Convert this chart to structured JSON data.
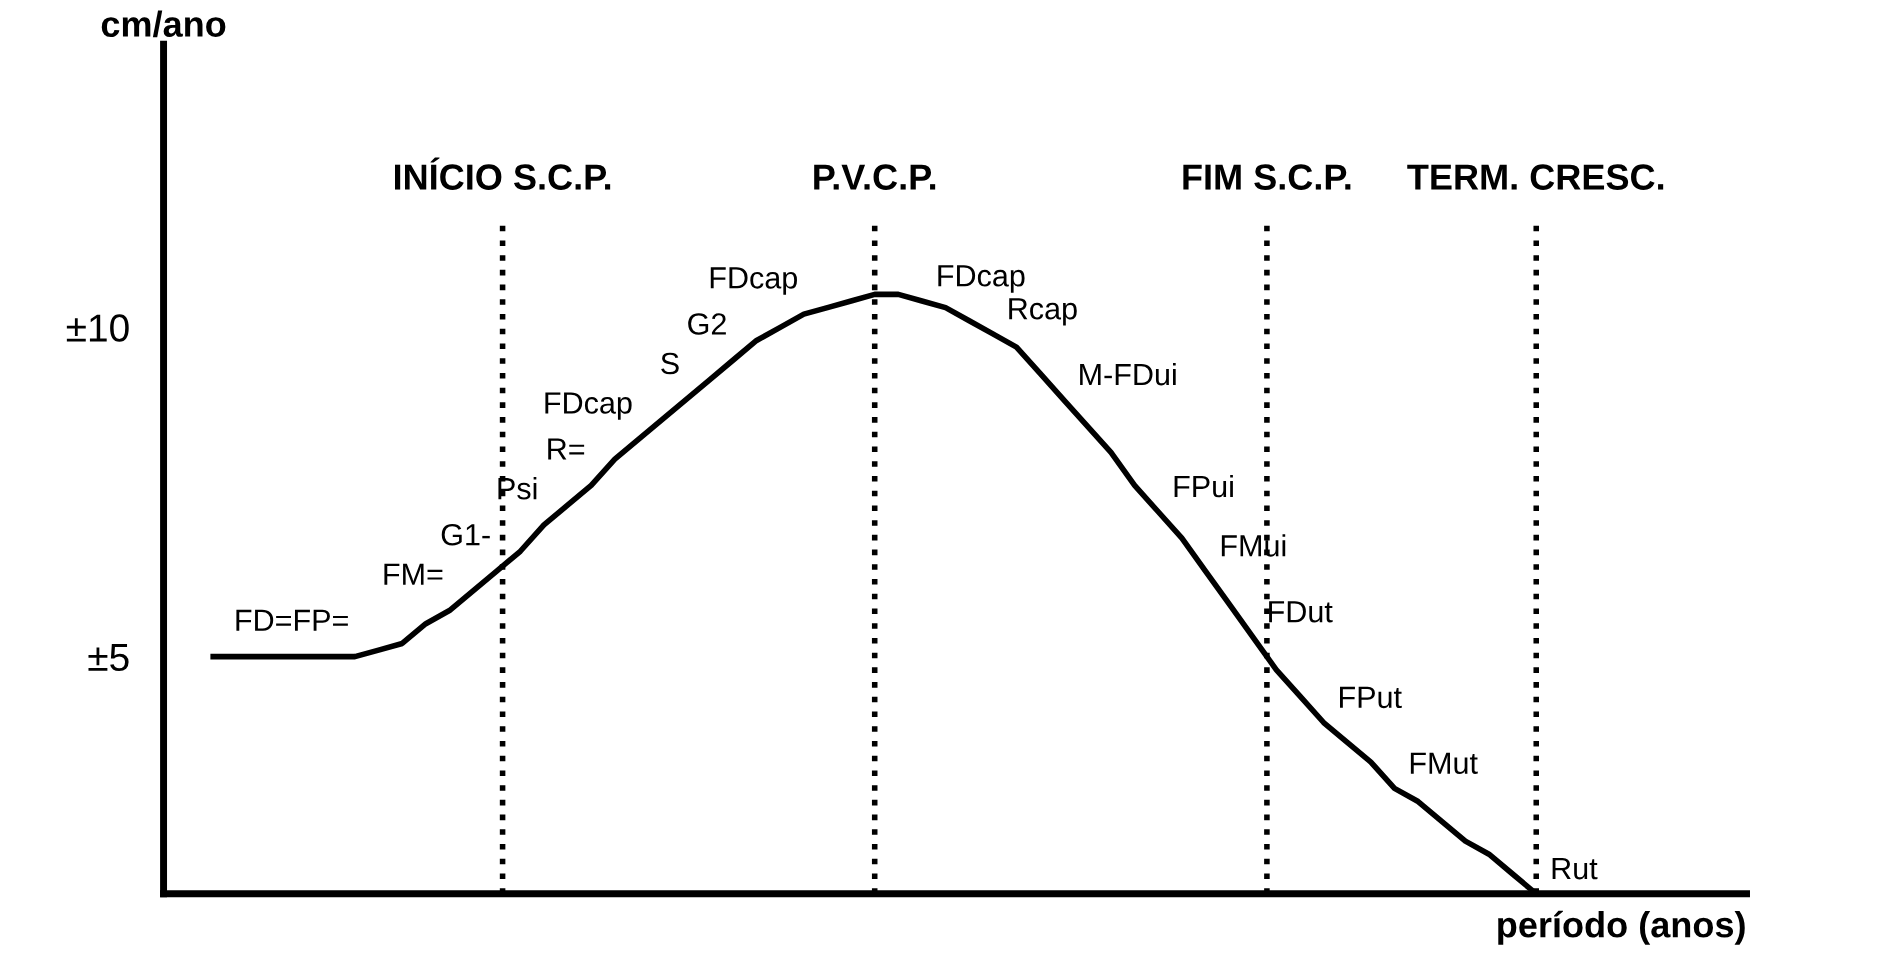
{
  "chart_data": {
    "type": "line",
    "xlabel": "período (anos)",
    "ylabel": "cm/ano",
    "categories": [
      null,
      null,
      null,
      null,
      null,
      null,
      null,
      null,
      null,
      null,
      null,
      null,
      null,
      null,
      null,
      null,
      null,
      null,
      null,
      null,
      null,
      null,
      null,
      null,
      null,
      null,
      null,
      null,
      null,
      null,
      null,
      null,
      null,
      null,
      null,
      null,
      null,
      null,
      null,
      null,
      null,
      null,
      null,
      null,
      null,
      null,
      null,
      null,
      null,
      null,
      null,
      null,
      null,
      null,
      null,
      null,
      null
    ],
    "series": [
      {
        "color": "#000000",
        "values": [
          5.0,
          5.0,
          5.0,
          5.0,
          5.0,
          5.0,
          5.0,
          5.1,
          5.2,
          5.5,
          5.7,
          6.0,
          6.3,
          6.6,
          7.0,
          7.3,
          7.6,
          8.0,
          8.3,
          8.6,
          8.9,
          9.2,
          9.5,
          9.8,
          10.0,
          10.2,
          10.3,
          10.4,
          10.5,
          10.5,
          10.4,
          10.3,
          10.1,
          9.9,
          9.7,
          9.3,
          8.9,
          8.5,
          8.1,
          7.6,
          7.2,
          6.8,
          6.3,
          5.8,
          5.3,
          4.8,
          4.4,
          4.0,
          3.7,
          3.4,
          3.0,
          2.8,
          2.5,
          2.2,
          2.0,
          1.7,
          1.4
        ],
        "value_labels": [
          null,
          null,
          null,
          null,
          null,
          null,
          "FD=FP=",
          null,
          null,
          null,
          "FM=",
          null,
          "G1-",
          null,
          "Psi",
          null,
          "R=",
          null,
          "FDcap",
          null,
          "S",
          null,
          "G2",
          null,
          null,
          "FDcap",
          null,
          null,
          null,
          null,
          "FDcap",
          null,
          null,
          "Rcap",
          null,
          null,
          "M-FDui",
          null,
          null,
          null,
          "FPui",
          null,
          "FMui",
          null,
          "FDut",
          null,
          null,
          "FPut",
          null,
          null,
          "FMut",
          null,
          null,
          null,
          null,
          null,
          "Rut"
        ]
      }
    ],
    "ylim": [
      1.4,
      14.3
    ],
    "yticks": [
      {
        "value": 10,
        "label": "±10"
      },
      {
        "value": 5,
        "label": "±5"
      }
    ],
    "tick_labels": "y",
    "marker": "none",
    "line_style": "solid",
    "grid": "x",
    "annotations": [
      "INÍCIO S.C.P.",
      "P.V.C.P.",
      "FIM S.C.P.",
      "TERM. CRESC."
    ]
  }
}
